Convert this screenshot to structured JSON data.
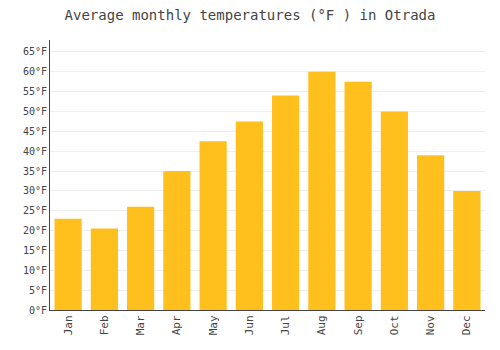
{
  "chart_data": {
    "type": "bar",
    "title": "Average monthly temperatures (°F ) in Otrada",
    "categories": [
      "Jan",
      "Feb",
      "Mar",
      "Apr",
      "May",
      "Jun",
      "Jul",
      "Aug",
      "Sep",
      "Oct",
      "Nov",
      "Dec"
    ],
    "values": [
      23,
      20.5,
      26,
      35,
      42.5,
      47.5,
      54,
      60,
      57.5,
      50,
      39,
      30
    ],
    "color": "#FFC01E",
    "ylim": [
      0,
      68
    ],
    "yticks": [
      {
        "value": 0,
        "label": "0°F"
      },
      {
        "value": 5,
        "label": "5°F"
      },
      {
        "value": 10,
        "label": "10°F"
      },
      {
        "value": 15,
        "label": "15°F"
      },
      {
        "value": 20,
        "label": "20°F"
      },
      {
        "value": 25,
        "label": "25°F"
      },
      {
        "value": 30,
        "label": "30°F"
      },
      {
        "value": 35,
        "label": "35°F"
      },
      {
        "value": 40,
        "label": "40°F"
      },
      {
        "value": 45,
        "label": "45°F"
      },
      {
        "value": 50,
        "label": "50°F"
      },
      {
        "value": 55,
        "label": "55°F"
      },
      {
        "value": 60,
        "label": "60°F"
      },
      {
        "value": 65,
        "label": "65°F"
      }
    ],
    "grid": true
  }
}
